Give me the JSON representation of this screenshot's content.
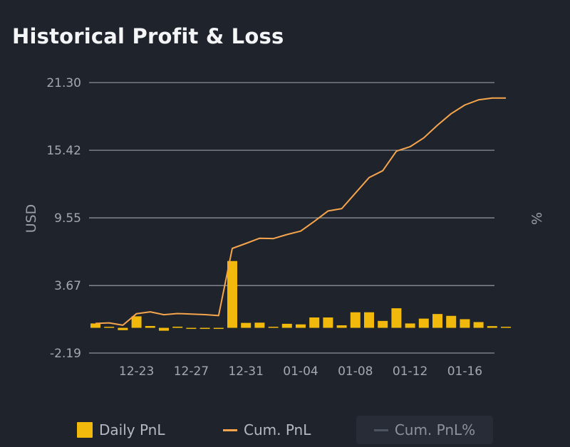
{
  "title": "Historical Profit & Loss",
  "chart_data": {
    "type": "bar",
    "ylabel": "USD",
    "y2label": "%",
    "ylim": [
      -2.19,
      21.3
    ],
    "yticks": [
      "21.30",
      "15.42",
      "9.55",
      "3.67",
      "-2.19"
    ],
    "ytick_values": [
      21.3,
      15.42,
      9.55,
      3.67,
      -2.19
    ],
    "xticks": [
      "12-23",
      "12-27",
      "12-31",
      "01-04",
      "01-08",
      "01-12",
      "01-16"
    ],
    "grid": true,
    "legend_position": "bottom",
    "categories": [
      "12-20",
      "12-21",
      "12-22",
      "12-23",
      "12-24",
      "12-25",
      "12-26",
      "12-27",
      "12-28",
      "12-29",
      "12-30",
      "12-31",
      "01-01",
      "01-02",
      "01-03",
      "01-04",
      "01-05",
      "01-06",
      "01-07",
      "01-08",
      "01-09",
      "01-10",
      "01-11",
      "01-12",
      "01-13",
      "01-14",
      "01-15",
      "01-16",
      "01-17",
      "01-18",
      "01-19"
    ],
    "series": [
      {
        "name": "Daily PnL",
        "kind": "bar",
        "color": "#f0b90b",
        "values": [
          0.38,
          0.05,
          -0.2,
          1.0,
          0.16,
          -0.25,
          0.1,
          -0.04,
          -0.05,
          -0.04,
          5.8,
          0.43,
          0.45,
          0.0,
          0.35,
          0.3,
          0.9,
          0.9,
          0.22,
          1.35,
          1.35,
          0.6,
          1.7,
          0.38,
          0.8,
          1.2,
          1.04,
          0.75,
          0.5,
          0.15,
          0.0
        ]
      },
      {
        "name": "Cum. PnL",
        "kind": "line",
        "color": "#f6a54c",
        "values": [
          0.38,
          0.43,
          0.23,
          1.23,
          1.39,
          1.14,
          1.24,
          1.2,
          1.15,
          1.06,
          6.9,
          7.33,
          7.78,
          7.75,
          8.1,
          8.4,
          9.25,
          10.15,
          10.35,
          11.7,
          13.05,
          13.65,
          15.35,
          15.73,
          16.5,
          17.6,
          18.6,
          19.35,
          19.8,
          19.95,
          19.95
        ]
      }
    ],
    "legend": [
      {
        "name": "Daily PnL",
        "active": true
      },
      {
        "name": "Cum. PnL",
        "active": true
      },
      {
        "name": "Cum. PnL%",
        "active": false
      }
    ]
  }
}
